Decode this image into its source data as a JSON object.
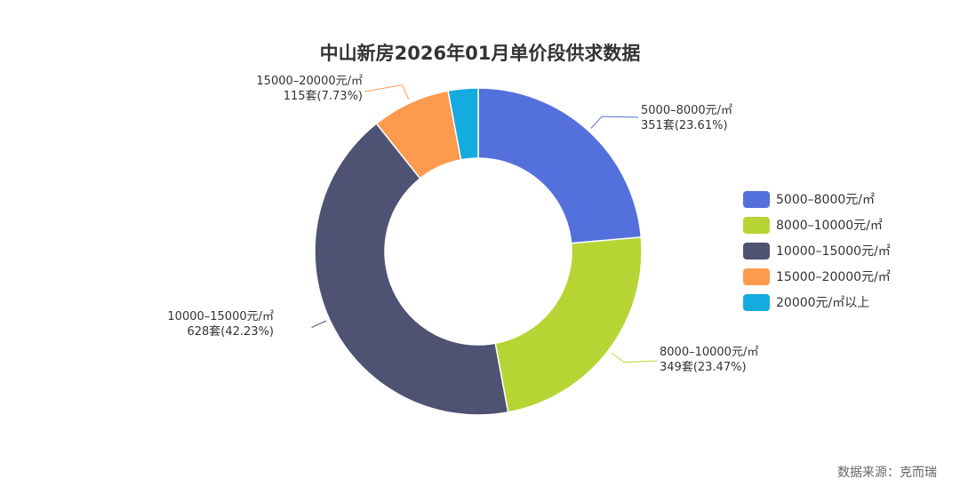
{
  "chart_data": {
    "type": "pie",
    "title": "中山新房2026年01月单价段供求数据",
    "categories": [
      "5000-8000元/㎡",
      "8000-10000元/㎡",
      "10000-15000元/㎡",
      "15000-20000元/㎡",
      "20000元/㎡以上"
    ],
    "series": [
      {
        "values": [
          351,
          349,
          628,
          115,
          44
        ],
        "percent_labels": [
          "23.61%",
          "23.47%",
          "42.23%",
          "7.73%",
          ""
        ],
        "data_labels": [
          [
            "5000–8000元/㎡",
            "351套(23.61%)"
          ],
          [
            "8000–10000元/㎡",
            "349套(23.47%)"
          ],
          [
            "10000–15000元/㎡",
            "628套(42.23%)"
          ],
          [
            "15000–20000元/㎡",
            "115套(7.73%)"
          ],
          null
        ]
      }
    ],
    "colors": [
      "#5470dc",
      "#b6d534",
      "#4e5273",
      "#fd9a4e",
      "#13abe0"
    ],
    "donut": true,
    "legend": {
      "position": "right",
      "labels": [
        "5000–8000元/㎡",
        "8000–10000元/㎡",
        "10000–15000元/㎡",
        "15000–20000元/㎡",
        "20000元/㎡以上"
      ]
    },
    "source": "数据来源：克而瑞"
  }
}
